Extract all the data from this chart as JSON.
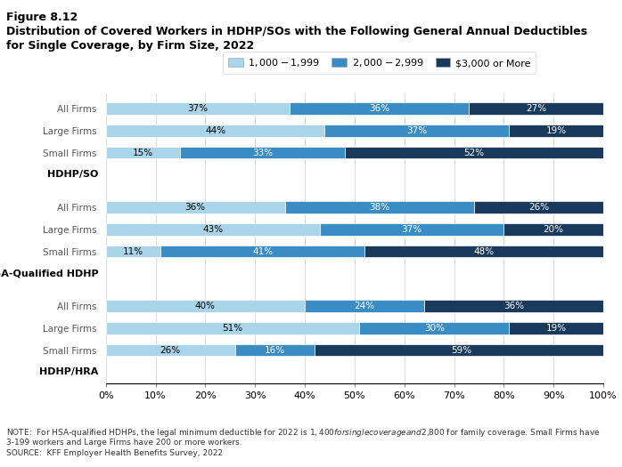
{
  "title_line1": "Figure 8.12",
  "title_line2": "Distribution of Covered Workers in HDHP/SOs with the Following General Annual Deductibles",
  "title_line3": "for Single Coverage, by Firm Size, 2022",
  "legend_labels": [
    "$1,000 - $1,999",
    "$2,000 - $2,999",
    "$3,000 or More"
  ],
  "colors": [
    "#aad4e8",
    "#3a8dc4",
    "#1a3a5c"
  ],
  "groups": [
    {
      "label": "HDHP/HRA",
      "rows": [
        {
          "name": "Small Firms",
          "values": [
            26,
            16,
            59
          ]
        },
        {
          "name": "Large Firms",
          "values": [
            51,
            30,
            19
          ]
        },
        {
          "name": "All Firms",
          "values": [
            40,
            24,
            36
          ]
        }
      ]
    },
    {
      "label": "HSA-Qualified HDHP",
      "rows": [
        {
          "name": "Small Firms",
          "values": [
            11,
            41,
            48
          ]
        },
        {
          "name": "Large Firms",
          "values": [
            43,
            37,
            20
          ]
        },
        {
          "name": "All Firms",
          "values": [
            36,
            38,
            26
          ]
        }
      ]
    },
    {
      "label": "HDHP/SO",
      "rows": [
        {
          "name": "Small Firms",
          "values": [
            15,
            33,
            52
          ]
        },
        {
          "name": "Large Firms",
          "values": [
            44,
            37,
            19
          ]
        },
        {
          "name": "All Firms",
          "values": [
            37,
            36,
            27
          ]
        }
      ]
    }
  ],
  "note_line1": "NOTE:  For HSA-qualified HDHPs, the legal minimum deductible for 2022 is $1,400 for single coverage and $2,800 for family coverage. Small Firms have",
  "note_line2": "3-199 workers and Large Firms have 200 or more workers.",
  "note_line3": "SOURCE:  KFF Employer Health Benefits Survey, 2022",
  "bar_height": 0.55,
  "background_color": "#ffffff"
}
